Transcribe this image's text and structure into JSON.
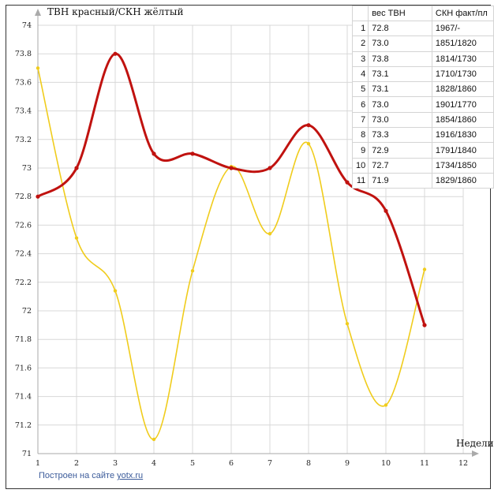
{
  "chart_data": {
    "type": "line",
    "title": "",
    "ylabel": "ТВН красный/СКН жёлтый",
    "xlabel": "Недели",
    "x": [
      1,
      2,
      3,
      4,
      5,
      6,
      7,
      8,
      9,
      10,
      11
    ],
    "xticks": [
      1,
      2,
      3,
      4,
      5,
      6,
      7,
      8,
      9,
      10,
      11,
      12
    ],
    "xlim": [
      1,
      12
    ],
    "ylim": [
      71.0,
      74.0
    ],
    "yticks": [
      71.0,
      71.2,
      71.4,
      71.6,
      71.8,
      72.0,
      72.2,
      72.4,
      72.6,
      72.8,
      73.0,
      73.2,
      73.4,
      73.6,
      73.8,
      74.0
    ],
    "grid": true,
    "series": [
      {
        "color": "#c0120f",
        "values": [
          72.8,
          73.0,
          73.8,
          73.1,
          73.1,
          73.0,
          73.0,
          73.3,
          72.9,
          72.7,
          71.9
        ]
      },
      {
        "color": "#f0cc1c",
        "values": [
          73.7,
          72.51,
          72.14,
          71.1,
          72.28,
          73.01,
          72.54,
          73.17,
          71.91,
          71.34,
          72.29
        ]
      }
    ]
  },
  "table": {
    "headers": [
      "",
      "вес ТВН",
      "СКН факт/пл"
    ],
    "rows": [
      [
        "1",
        "72.8",
        "1967/-"
      ],
      [
        "2",
        "73.0",
        "1851/1820"
      ],
      [
        "3",
        "73.8",
        "1814/1730"
      ],
      [
        "4",
        "73.1",
        "1710/1730"
      ],
      [
        "5",
        "73.1",
        "1828/1860"
      ],
      [
        "6",
        "73.0",
        "1901/1770"
      ],
      [
        "7",
        "73.0",
        "1854/1860"
      ],
      [
        "8",
        "73.3",
        "1916/1830"
      ],
      [
        "9",
        "72.9",
        "1791/1840"
      ],
      [
        "10",
        "72.7",
        "1734/1850"
      ],
      [
        "11",
        "71.9",
        "1829/1860"
      ]
    ]
  },
  "credit": {
    "text": "Построен на сайте ",
    "link": "yotx.ru"
  },
  "colors": {
    "grid": "#d8d8d8",
    "axis": "#aaaaaa"
  }
}
